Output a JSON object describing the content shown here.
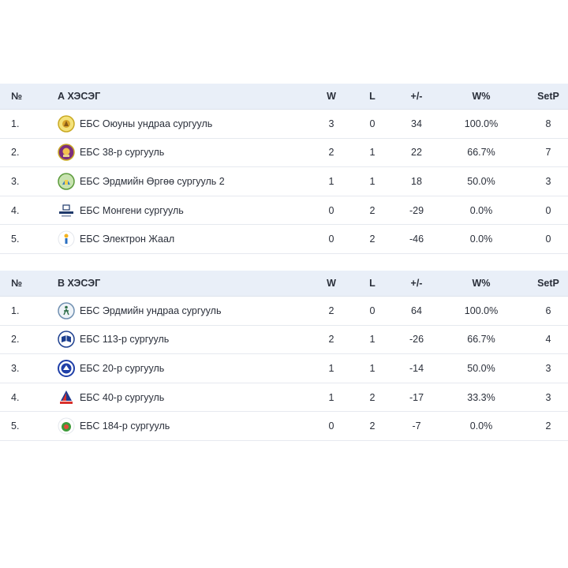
{
  "columns": {
    "no": "№",
    "w": "W",
    "l": "L",
    "pm": "+/-",
    "wp": "W%",
    "sp": "SetP"
  },
  "groups": [
    {
      "title": "А ХЭСЭГ",
      "rows": [
        {
          "rank": "1.",
          "team": "ЕБС Оюуны ундраа сургууль",
          "w": "3",
          "l": "0",
          "pm": "34",
          "wp": "100.0%",
          "sp": "8",
          "logo": "crest-yellow-icon"
        },
        {
          "rank": "2.",
          "team": "ЕБС 38-р сургууль",
          "w": "2",
          "l": "1",
          "pm": "22",
          "wp": "66.7%",
          "sp": "7",
          "logo": "crest-purple-icon"
        },
        {
          "rank": "3.",
          "team": "ЕБС Эрдмийн Өргөө сургууль 2",
          "w": "1",
          "l": "1",
          "pm": "18",
          "wp": "50.0%",
          "sp": "3",
          "logo": "crest-green-icon"
        },
        {
          "rank": "4.",
          "team": "ЕБС Монгени сургууль",
          "w": "0",
          "l": "2",
          "pm": "-29",
          "wp": "0.0%",
          "sp": "0",
          "logo": "crest-mongeni-icon"
        },
        {
          "rank": "5.",
          "team": "ЕБС Электрон Жаал",
          "w": "0",
          "l": "2",
          "pm": "-46",
          "wp": "0.0%",
          "sp": "0",
          "logo": "crest-electron-icon"
        }
      ]
    },
    {
      "title": "В ХЭСЭГ",
      "rows": [
        {
          "rank": "1.",
          "team": "ЕБС Эрдмийн ундраа сургууль",
          "w": "2",
          "l": "0",
          "pm": "64",
          "wp": "100.0%",
          "sp": "6",
          "logo": "crest-runner-icon"
        },
        {
          "rank": "2.",
          "team": "ЕБС 113-р сургууль",
          "w": "2",
          "l": "1",
          "pm": "-26",
          "wp": "66.7%",
          "sp": "4",
          "logo": "crest-book-icon"
        },
        {
          "rank": "3.",
          "team": "ЕБС 20-р сургууль",
          "w": "1",
          "l": "1",
          "pm": "-14",
          "wp": "50.0%",
          "sp": "3",
          "logo": "crest-blue-icon"
        },
        {
          "rank": "4.",
          "team": "ЕБС 40-р сургууль",
          "w": "1",
          "l": "2",
          "pm": "-17",
          "wp": "33.3%",
          "sp": "3",
          "logo": "crest-sail-icon"
        },
        {
          "rank": "5.",
          "team": "ЕБС 184-р сургууль",
          "w": "0",
          "l": "2",
          "pm": "-7",
          "wp": "0.0%",
          "sp": "2",
          "logo": "crest-green-round-icon"
        }
      ]
    }
  ]
}
